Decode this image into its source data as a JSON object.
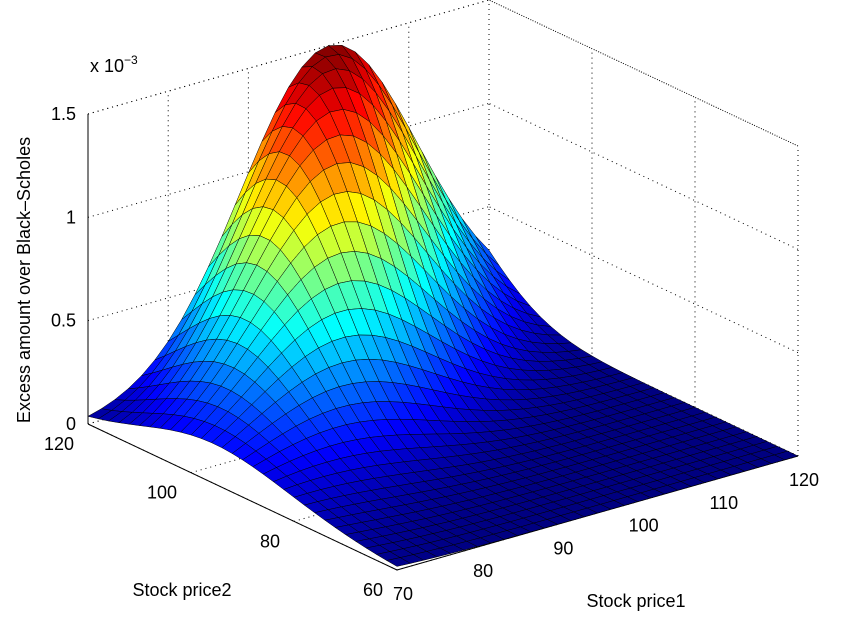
{
  "chart_data": {
    "type": "surface",
    "title": "",
    "zlabel": "Excess amount over Black–Scholes",
    "xlabel": "Stock price1",
    "ylabel": "Stock price2",
    "z_multiplier": "x 10",
    "z_multiplier_exponent": "−3",
    "x_ticks": [
      "70",
      "80",
      "90",
      "100",
      "110",
      "120"
    ],
    "y_ticks": [
      "60",
      "80",
      "100",
      "120"
    ],
    "z_ticks": [
      "0",
      "0.5",
      "1",
      "1.5"
    ],
    "xlim": [
      70,
      120
    ],
    "ylim": [
      60,
      120
    ],
    "zlim": [
      0,
      1.5
    ],
    "z_scale": 0.001,
    "grid": true,
    "colormap": "jet",
    "surface_model": {
      "description_of_values": "excess (x 10^-3) peaks near stock price1 = 100, stock price2 = 120",
      "peak_value": 1.5,
      "peak_x": 100,
      "peak_y": 120
    }
  }
}
